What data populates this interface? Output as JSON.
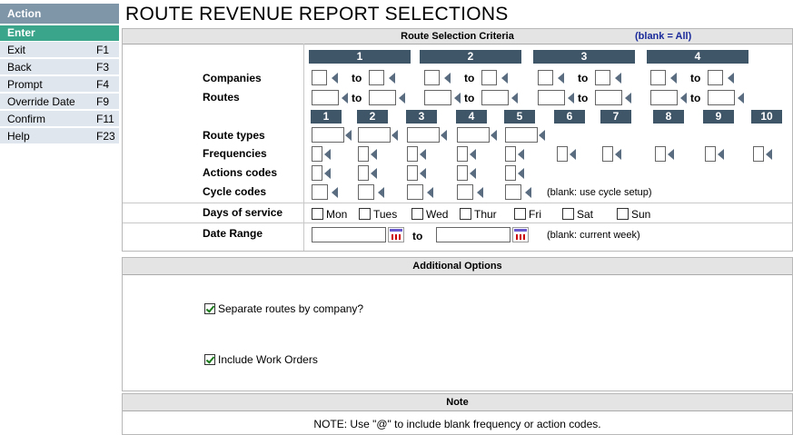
{
  "sidebar": {
    "heading": "Action",
    "enter": "Enter",
    "items": [
      {
        "label": "Exit",
        "key": "F1"
      },
      {
        "label": "Back",
        "key": "F3"
      },
      {
        "label": "Prompt",
        "key": "F4"
      },
      {
        "label": "Override Date",
        "key": "F9"
      },
      {
        "label": "Confirm",
        "key": "F11"
      },
      {
        "label": "Help",
        "key": "F23"
      }
    ]
  },
  "page_title": "ROUTE REVENUE REPORT SELECTIONS",
  "criteria": {
    "heading": "Route Selection Criteria",
    "blank_note": "(blank = All)",
    "company_columns": [
      "1",
      "2",
      "3",
      "4"
    ],
    "to_label": "to",
    "labels": {
      "companies": "Companies",
      "routes": "Routes",
      "route_types": "Route types",
      "frequencies": "Frequencies",
      "actions_codes": "Actions codes",
      "cycle_codes": "Cycle codes",
      "days_of_service": "Days of service",
      "date_range": "Date Range"
    },
    "code_columns": [
      "1",
      "2",
      "3",
      "4",
      "5",
      "6",
      "7",
      "8",
      "9",
      "10"
    ],
    "cycle_note": "(blank: use cycle setup)",
    "days": [
      "Mon",
      "Tues",
      "Wed",
      "Thur",
      "Fri",
      "Sat",
      "Sun"
    ],
    "date_to": "to",
    "date_note": "(blank: current week)"
  },
  "additional": {
    "heading": "Additional Options",
    "separate_routes": "Separate routes by company?",
    "include_work_orders": "Include Work Orders"
  },
  "note": {
    "heading": "Note",
    "text": "NOTE: Use \"@\" to include blank frequency or action codes."
  }
}
